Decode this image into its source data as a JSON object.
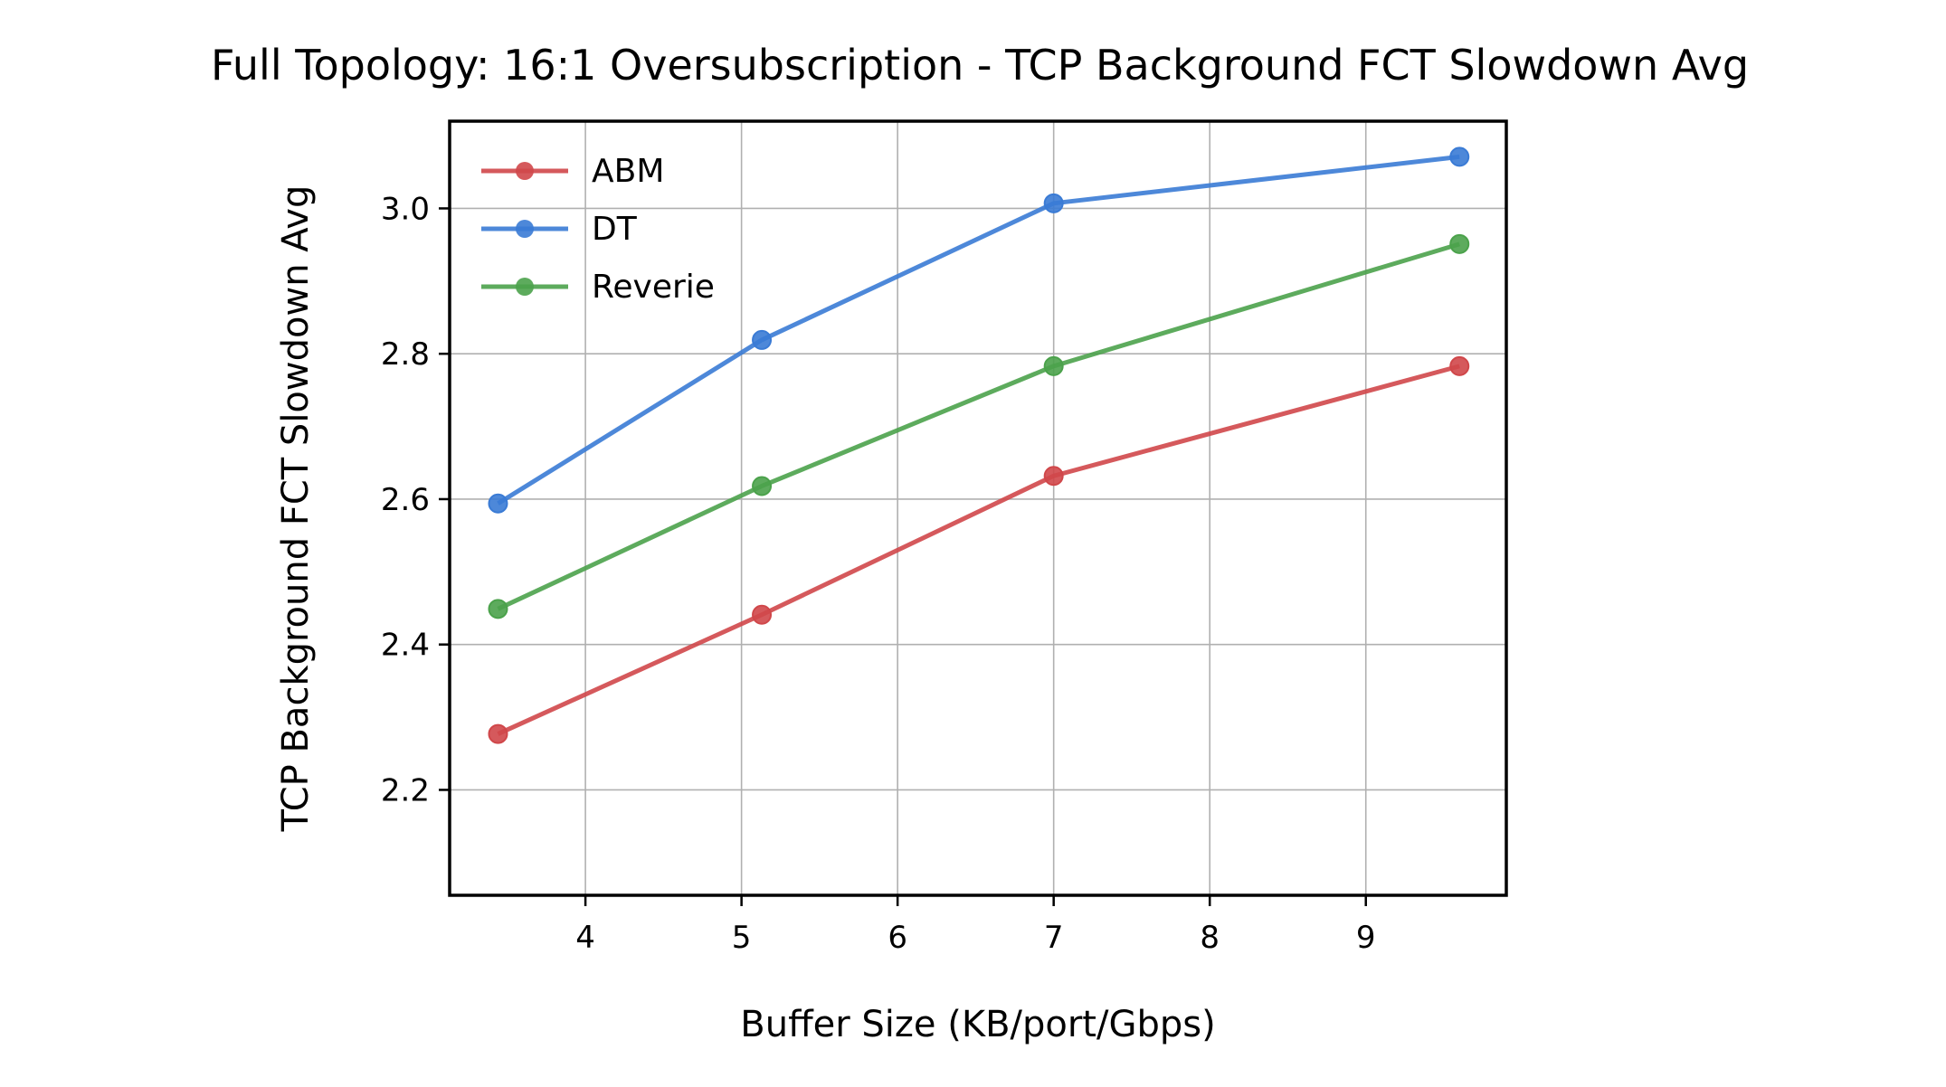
{
  "chart_data": {
    "type": "line",
    "title": "Full Topology: 16:1 Oversubscription - TCP Background FCT Slowdown Avg",
    "xlabel": "Buffer Size (KB/port/Gbps)",
    "ylabel": "TCP Background FCT Slowdown Avg",
    "xlim": [
      3.13,
      9.9
    ],
    "ylim": [
      2.055,
      3.12
    ],
    "x_ticks": [
      4,
      5,
      6,
      7,
      8,
      9
    ],
    "y_ticks": [
      2.2,
      2.4,
      2.6,
      2.8,
      3.0
    ],
    "x_tick_labels": [
      "4",
      "5",
      "6",
      "7",
      "8",
      "9"
    ],
    "y_tick_labels": [
      "2.2",
      "2.4",
      "2.6",
      "2.8",
      "3.0"
    ],
    "grid": true,
    "legend_position": "top-left",
    "series": [
      {
        "name": "ABM",
        "color": "#d0474a",
        "x": [
          3.44,
          5.13,
          7.0,
          9.6
        ],
        "values": [
          2.277,
          2.441,
          2.632,
          2.783
        ]
      },
      {
        "name": "DT",
        "color": "#3a7bd5",
        "x": [
          3.44,
          5.13,
          7.0,
          9.6
        ],
        "values": [
          2.594,
          2.819,
          3.007,
          3.071
        ]
      },
      {
        "name": "Reverie",
        "color": "#4ba24b",
        "x": [
          3.44,
          5.13,
          7.0,
          9.6
        ],
        "values": [
          2.449,
          2.618,
          2.783,
          2.951
        ]
      }
    ]
  }
}
